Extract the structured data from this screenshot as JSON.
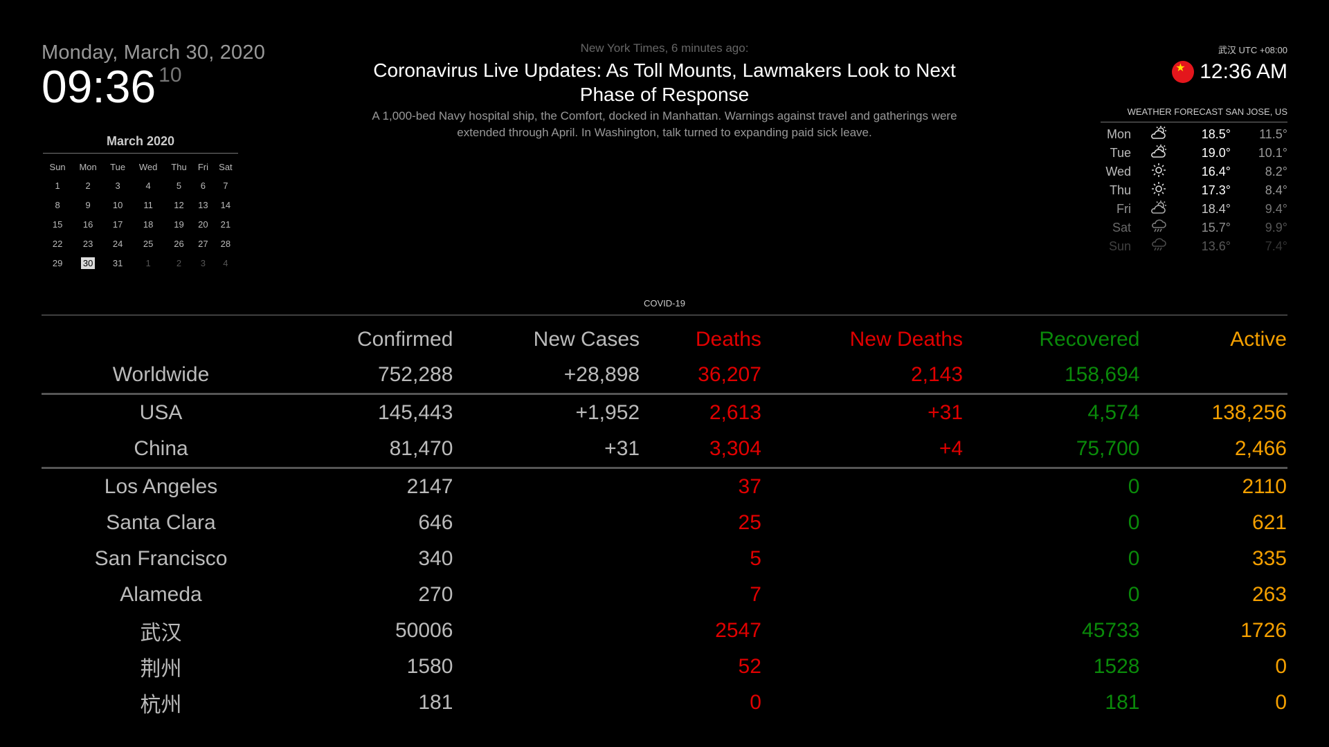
{
  "clock": {
    "date": "Monday, March 30, 2020",
    "time": "09:36",
    "seconds": "10"
  },
  "calendar": {
    "title": "March 2020",
    "weekdays": [
      "Sun",
      "Mon",
      "Tue",
      "Wed",
      "Thu",
      "Fri",
      "Sat"
    ],
    "weeks": [
      [
        "1",
        "2",
        "3",
        "4",
        "5",
        "6",
        "7"
      ],
      [
        "8",
        "9",
        "10",
        "11",
        "12",
        "13",
        "14"
      ],
      [
        "15",
        "16",
        "17",
        "18",
        "19",
        "20",
        "21"
      ],
      [
        "22",
        "23",
        "24",
        "25",
        "26",
        "27",
        "28"
      ],
      [
        "29",
        "30",
        "31",
        "1",
        "2",
        "3",
        "4"
      ]
    ],
    "today": "30"
  },
  "news": {
    "source": "New York Times, 6 minutes ago:",
    "headline": "Coronavirus Live Updates: As Toll Mounts, Lawmakers Look to Next Phase of Response",
    "description": "A 1,000-bed Navy hospital ship, the Comfort, docked in Manhattan. Warnings against travel and gatherings were extended through April. In Washington, talk turned to expanding paid sick leave."
  },
  "world_clock": {
    "label": "武汉 UTC +08:00",
    "time": "12:36 AM",
    "flag_icon": "china-flag-icon"
  },
  "weather": {
    "title": "WEATHER FORECAST SAN JOSE, US",
    "days": [
      {
        "day": "Mon",
        "icon": "partly-cloudy-icon",
        "high": "18.5°",
        "low": "11.5°"
      },
      {
        "day": "Tue",
        "icon": "partly-cloudy-icon",
        "high": "19.0°",
        "low": "10.1°"
      },
      {
        "day": "Wed",
        "icon": "sun-icon",
        "high": "16.4°",
        "low": "8.2°"
      },
      {
        "day": "Thu",
        "icon": "sun-icon",
        "high": "17.3°",
        "low": "8.4°"
      },
      {
        "day": "Fri",
        "icon": "partly-cloudy-icon",
        "high": "18.4°",
        "low": "9.4°"
      },
      {
        "day": "Sat",
        "icon": "rain-icon",
        "high": "15.7°",
        "low": "9.9°"
      },
      {
        "day": "Sun",
        "icon": "rain-icon",
        "high": "13.6°",
        "low": "7.4°"
      }
    ]
  },
  "covid": {
    "title": "COVID-19",
    "headers": {
      "confirmed": "Confirmed",
      "new_cases": "New Cases",
      "deaths": "Deaths",
      "new_deaths": "New Deaths",
      "recovered": "Recovered",
      "active": "Active"
    },
    "rows": [
      {
        "name": "Worldwide",
        "confirmed": "752,288",
        "new_cases": "+28,898",
        "deaths": "36,207",
        "new_deaths": "2,143",
        "recovered": "158,694",
        "active": ""
      },
      {
        "name": "USA",
        "confirmed": "145,443",
        "new_cases": "+1,952",
        "deaths": "2,613",
        "new_deaths": "+31",
        "recovered": "4,574",
        "active": "138,256"
      },
      {
        "name": "China",
        "confirmed": "81,470",
        "new_cases": "+31",
        "deaths": "3,304",
        "new_deaths": "+4",
        "recovered": "75,700",
        "active": "2,466"
      },
      {
        "name": "Los Angeles",
        "confirmed": "2147",
        "new_cases": "",
        "deaths": "37",
        "new_deaths": "",
        "recovered": "0",
        "active": "2110"
      },
      {
        "name": "Santa Clara",
        "confirmed": "646",
        "new_cases": "",
        "deaths": "25",
        "new_deaths": "",
        "recovered": "0",
        "active": "621"
      },
      {
        "name": "San Francisco",
        "confirmed": "340",
        "new_cases": "",
        "deaths": "5",
        "new_deaths": "",
        "recovered": "0",
        "active": "335"
      },
      {
        "name": "Alameda",
        "confirmed": "270",
        "new_cases": "",
        "deaths": "7",
        "new_deaths": "",
        "recovered": "0",
        "active": "263"
      },
      {
        "name": "武汉",
        "confirmed": "50006",
        "new_cases": "",
        "deaths": "2547",
        "new_deaths": "",
        "recovered": "45733",
        "active": "1726"
      },
      {
        "name": "荆州",
        "confirmed": "1580",
        "new_cases": "",
        "deaths": "52",
        "new_deaths": "",
        "recovered": "1528",
        "active": "0"
      },
      {
        "name": "杭州",
        "confirmed": "181",
        "new_cases": "",
        "deaths": "0",
        "new_deaths": "",
        "recovered": "181",
        "active": "0"
      }
    ]
  },
  "colors": {
    "deaths": "#e00000",
    "recovered": "#0a8a0a",
    "active": "#f5a000",
    "background": "#000000"
  }
}
